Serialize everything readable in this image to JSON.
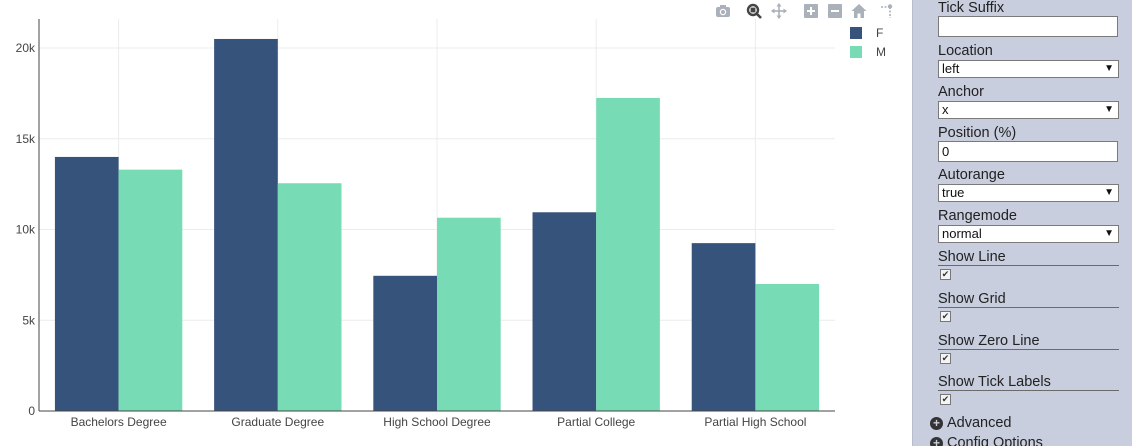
{
  "modebar": {
    "icons": [
      "camera-icon",
      "zoom-icon",
      "pan-icon",
      "zoom-in-icon",
      "zoom-out-icon",
      "home-icon",
      "spike-lines-icon"
    ]
  },
  "chart_data": {
    "type": "bar",
    "categories": [
      "Bachelors Degree",
      "Graduate Degree",
      "High School Degree",
      "Partial College",
      "Partial High School"
    ],
    "series": [
      {
        "name": "F",
        "color": "#36537c",
        "values": [
          14000,
          20500,
          7450,
          10950,
          9250
        ]
      },
      {
        "name": "M",
        "color": "#77dbb5",
        "values": [
          13300,
          12550,
          10650,
          17250,
          7000
        ]
      }
    ],
    "y_ticks": [
      0,
      5000,
      10000,
      15000,
      20000
    ],
    "y_tick_labels": [
      "0",
      "5k",
      "10k",
      "15k",
      "20k"
    ],
    "ylim": [
      0,
      21600
    ],
    "grid": true,
    "legend_position": "top-right",
    "title": "",
    "xlabel": "",
    "ylabel": ""
  },
  "panel": {
    "tick_suffix": {
      "label": "Tick Suffix",
      "value": ""
    },
    "location": {
      "label": "Location",
      "value": "left"
    },
    "anchor": {
      "label": "Anchor",
      "value": "x"
    },
    "position": {
      "label": "Position (%)",
      "value": "0"
    },
    "autorange": {
      "label": "Autorange",
      "value": "true"
    },
    "rangemode": {
      "label": "Rangemode",
      "value": "normal"
    },
    "show_line": {
      "label": "Show Line",
      "checked": true
    },
    "show_grid": {
      "label": "Show Grid",
      "checked": true
    },
    "show_zero_line": {
      "label": "Show Zero Line",
      "checked": true
    },
    "show_tick_labels": {
      "label": "Show Tick Labels",
      "checked": true
    },
    "advanced": {
      "label": "Advanced"
    },
    "config_options": {
      "label": "Config Options"
    },
    "checkmark": "✔",
    "dropdown_arrow": "▼"
  }
}
